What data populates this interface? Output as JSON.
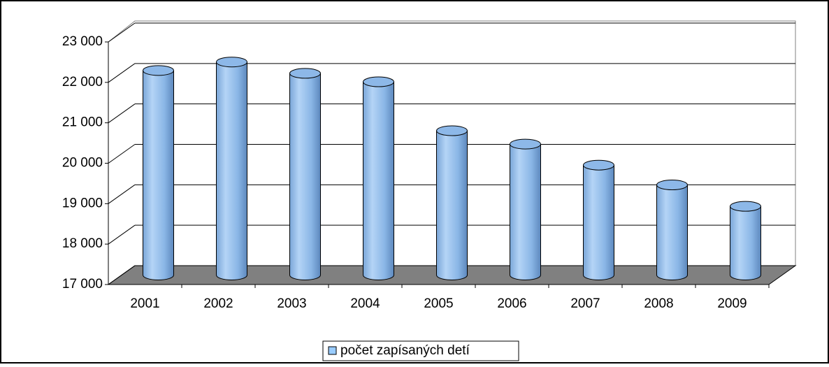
{
  "chart_data": {
    "type": "bar3d",
    "categories": [
      "2001",
      "2002",
      "2003",
      "2004",
      "2005",
      "2006",
      "2007",
      "2008",
      "2009"
    ],
    "series": [
      {
        "name": "počet zapísaných detí",
        "color": "#99ccff",
        "values": [
          22060,
          22270,
          21990,
          21780,
          20570,
          20240,
          19720,
          19230,
          18700
        ]
      }
    ],
    "ylim": [
      17000,
      23000
    ],
    "yticks": [
      {
        "value": 17000,
        "label": "17 000"
      },
      {
        "value": 18000,
        "label": "18 000"
      },
      {
        "value": 19000,
        "label": "19 000"
      },
      {
        "value": 20000,
        "label": "20 000"
      },
      {
        "value": 21000,
        "label": "21 000"
      },
      {
        "value": 22000,
        "label": "22 000"
      },
      {
        "value": 23000,
        "label": "23 000"
      }
    ],
    "grid": true,
    "legend": "bottom"
  }
}
